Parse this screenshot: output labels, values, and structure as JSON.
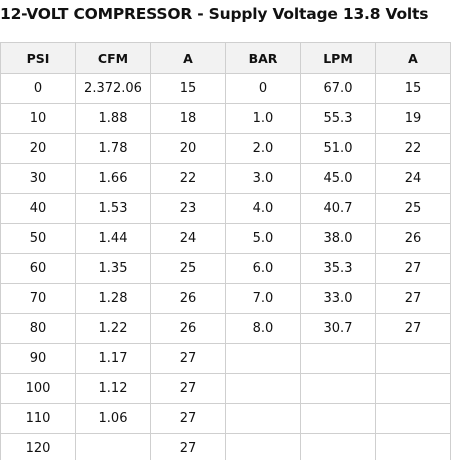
{
  "title": "12-VOLT COMPRESSOR - Supply Voltage 13.8 Volts",
  "table": {
    "header": [
      "PSI",
      "CFM",
      "A",
      "BAR",
      "LPM",
      "A"
    ],
    "rows": [
      [
        "0",
        "2.372.06",
        "15",
        "0",
        "67.0",
        "15"
      ],
      [
        "10",
        "1.88",
        "18",
        "1.0",
        "55.3",
        "19"
      ],
      [
        "20",
        "1.78",
        "20",
        "2.0",
        "51.0",
        "22"
      ],
      [
        "30",
        "1.66",
        "22",
        "3.0",
        "45.0",
        "24"
      ],
      [
        "40",
        "1.53",
        "23",
        "4.0",
        "40.7",
        "25"
      ],
      [
        "50",
        "1.44",
        "24",
        "5.0",
        "38.0",
        "26"
      ],
      [
        "60",
        "1.35",
        "25",
        "6.0",
        "35.3",
        "27"
      ],
      [
        "70",
        "1.28",
        "26",
        "7.0",
        "33.0",
        "27"
      ],
      [
        "80",
        "1.22",
        "26",
        "8.0",
        "30.7",
        "27"
      ],
      [
        "90",
        "1.17",
        "27",
        null,
        null,
        null
      ],
      [
        "100",
        "1.12",
        "27",
        null,
        null,
        null
      ],
      [
        "110",
        "1.06",
        "27",
        null,
        null,
        null
      ],
      [
        "120",
        null,
        "27",
        null,
        null,
        null
      ]
    ]
  }
}
